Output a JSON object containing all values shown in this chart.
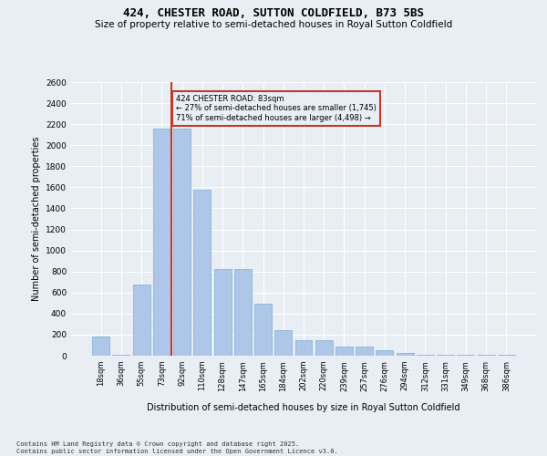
{
  "title": "424, CHESTER ROAD, SUTTON COLDFIELD, B73 5BS",
  "subtitle": "Size of property relative to semi-detached houses in Royal Sutton Coldfield",
  "xlabel": "Distribution of semi-detached houses by size in Royal Sutton Coldfield",
  "ylabel": "Number of semi-detached properties",
  "categories": [
    "18sqm",
    "36sqm",
    "55sqm",
    "73sqm",
    "92sqm",
    "110sqm",
    "128sqm",
    "147sqm",
    "165sqm",
    "184sqm",
    "202sqm",
    "220sqm",
    "239sqm",
    "257sqm",
    "276sqm",
    "294sqm",
    "312sqm",
    "331sqm",
    "349sqm",
    "368sqm",
    "386sqm"
  ],
  "values": [
    180,
    5,
    680,
    2160,
    2160,
    1580,
    820,
    820,
    490,
    240,
    150,
    150,
    90,
    90,
    50,
    30,
    10,
    5,
    5,
    5,
    10
  ],
  "bar_color": "#aec6e8",
  "bar_edge_color": "#7aafd4",
  "property_sqm": 83,
  "property_label": "424 CHESTER ROAD: 83sqm",
  "smaller_pct": 27,
  "smaller_count": 1745,
  "larger_pct": 71,
  "larger_count": 4498,
  "ylim": [
    0,
    2600
  ],
  "yticks": [
    0,
    200,
    400,
    600,
    800,
    1000,
    1200,
    1400,
    1600,
    1800,
    2000,
    2200,
    2400,
    2600
  ],
  "vline_color": "#c0392b",
  "vline_x_index": 3.5,
  "annotation_box_color": "#c0392b",
  "background_color": "#e8eef4",
  "grid_color": "#ffffff",
  "footer_line1": "Contains HM Land Registry data © Crown copyright and database right 2025.",
  "footer_line2": "Contains public sector information licensed under the Open Government Licence v3.0."
}
